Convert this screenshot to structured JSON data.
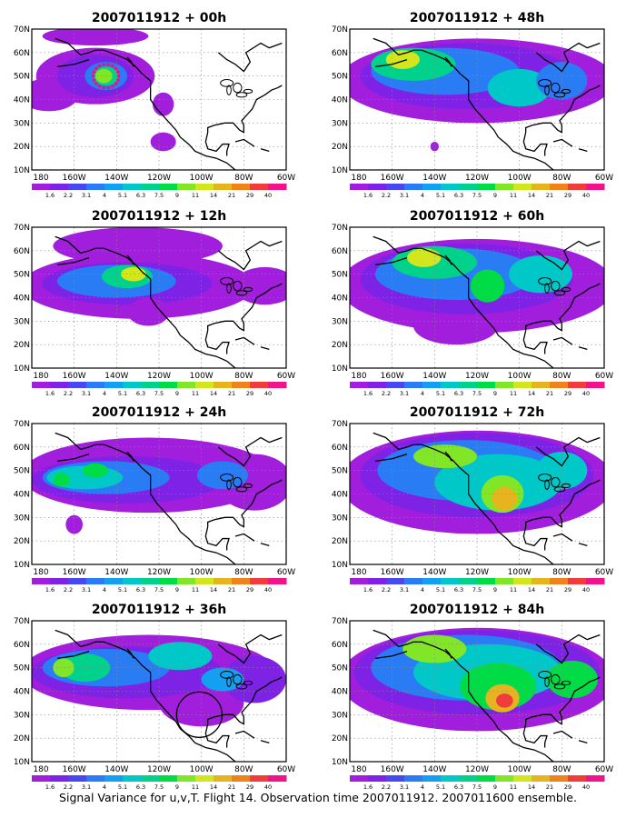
{
  "figure": {
    "caption": "Signal Variance for u,v,T. Flight 14. Observation time 2007011912. 2007011600 ensemble.",
    "lat_labels": [
      "10N",
      "20N",
      "30N",
      "40N",
      "50N",
      "60N",
      "70N"
    ],
    "lon_labels": [
      "180",
      "160W",
      "140W",
      "120W",
      "100W",
      "80W",
      "60W"
    ],
    "colorbar": {
      "levels": [
        "1.6",
        "2.2",
        "3.1",
        "4",
        "5.1",
        "6.3",
        "7.5",
        "9",
        "11",
        "14",
        "21",
        "29",
        "40"
      ],
      "colors": [
        "#a01edc",
        "#7e22e6",
        "#4848f0",
        "#2a7cf4",
        "#14a0f0",
        "#00c8c8",
        "#00d28c",
        "#00dc46",
        "#82e628",
        "#d2e61e",
        "#e6b41e",
        "#f0821e",
        "#f03c3c",
        "#f0148c"
      ]
    },
    "panels": [
      {
        "title": "2007011912 + 00h",
        "lead_hours": 0
      },
      {
        "title": "2007011912 + 48h",
        "lead_hours": 48
      },
      {
        "title": "2007011912 + 12h",
        "lead_hours": 12
      },
      {
        "title": "2007011912 + 60h",
        "lead_hours": 60
      },
      {
        "title": "2007011912 + 24h",
        "lead_hours": 24
      },
      {
        "title": "2007011912 + 72h",
        "lead_hours": 72
      },
      {
        "title": "2007011912 + 36h",
        "lead_hours": 36
      },
      {
        "title": "2007011912 + 84h",
        "lead_hours": 84
      }
    ],
    "annotations": {
      "target_circle_panel": "2007011912 + 36h",
      "observation_track_panel": "2007011912 + 00h",
      "observation_track_color": "#e6147a"
    }
  }
}
